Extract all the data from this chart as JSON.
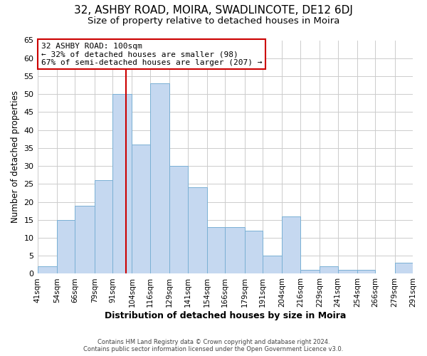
{
  "title1": "32, ASHBY ROAD, MOIRA, SWADLINCOTE, DE12 6DJ",
  "title2": "Size of property relative to detached houses in Moira",
  "xlabel": "Distribution of detached houses by size in Moira",
  "ylabel": "Number of detached properties",
  "footer1": "Contains HM Land Registry data © Crown copyright and database right 2024.",
  "footer2": "Contains public sector information licensed under the Open Government Licence v3.0.",
  "bin_labels": [
    "41sqm",
    "54sqm",
    "66sqm",
    "79sqm",
    "91sqm",
    "104sqm",
    "116sqm",
    "129sqm",
    "141sqm",
    "154sqm",
    "166sqm",
    "179sqm",
    "191sqm",
    "204sqm",
    "216sqm",
    "229sqm",
    "241sqm",
    "254sqm",
    "266sqm",
    "279sqm",
    "291sqm"
  ],
  "bin_edges": [
    41,
    54,
    66,
    79,
    91,
    104,
    116,
    129,
    141,
    154,
    166,
    179,
    191,
    204,
    216,
    229,
    241,
    254,
    266,
    279,
    291
  ],
  "counts": [
    2,
    15,
    19,
    26,
    50,
    36,
    53,
    30,
    24,
    13,
    13,
    12,
    5,
    16,
    1,
    2,
    1,
    1,
    0,
    3
  ],
  "bar_color": "#c5d8f0",
  "bar_edge_color": "#7ab0d4",
  "vline_x": 100,
  "vline_color": "#cc0000",
  "annotation_title": "32 ASHBY ROAD: 100sqm",
  "annotation_line1": "← 32% of detached houses are smaller (98)",
  "annotation_line2": "67% of semi-detached houses are larger (207) →",
  "annotation_box_color": "#ffffff",
  "annotation_box_edge": "#cc0000",
  "ylim": [
    0,
    65
  ],
  "yticks": [
    0,
    5,
    10,
    15,
    20,
    25,
    30,
    35,
    40,
    45,
    50,
    55,
    60,
    65
  ],
  "grid_color": "#cccccc",
  "background_color": "#ffffff",
  "title1_fontsize": 11,
  "title2_fontsize": 9.5
}
